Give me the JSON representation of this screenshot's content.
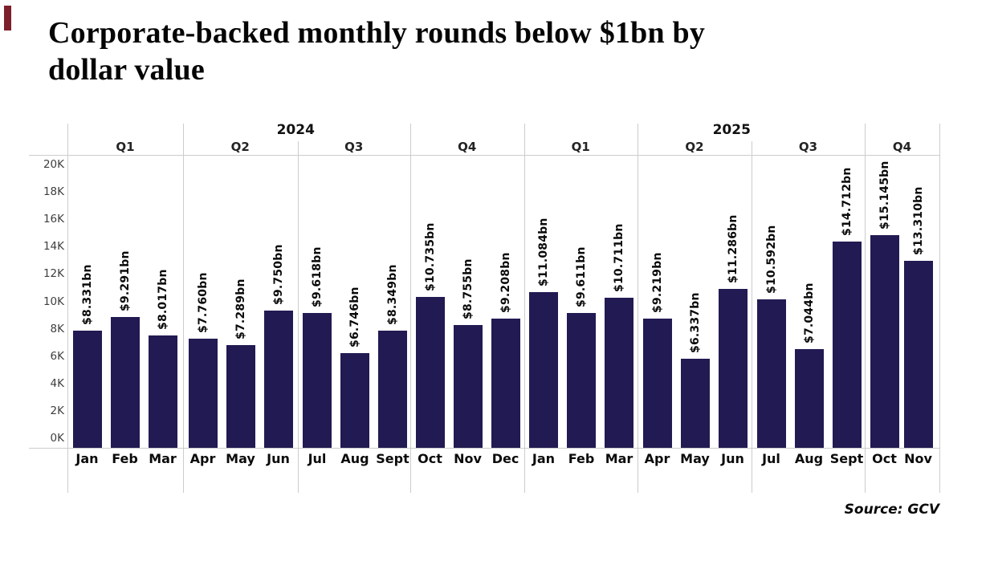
{
  "title": {
    "line1": "Corporate-backed monthly rounds below $1bn by",
    "line2": "dollar value"
  },
  "source_label": "Source: GCV",
  "colors": {
    "bar": "#221a52",
    "brand_mark": "#7d1f2b",
    "grid_line": "#cccccc"
  },
  "chart_data": {
    "type": "bar",
    "title": "Corporate-backed monthly rounds below $1bn by dollar value",
    "xlabel": "",
    "ylabel": "",
    "ylim": [
      0,
      20000
    ],
    "y_ticks": [
      "0K",
      "2K",
      "4K",
      "6K",
      "8K",
      "10K",
      "12K",
      "14K",
      "16K",
      "18K",
      "20K"
    ],
    "legend": "none",
    "gridlines": "quarter and year separator lines only, no horizontal gridlines",
    "bar_color": "#221a52",
    "source": "Source: GCV",
    "years": [
      {
        "year": "2024",
        "quarters": [
          {
            "label": "Q1",
            "months": [
              {
                "month": "Jan",
                "value": 8331,
                "bar_label": "$8.331bn"
              },
              {
                "month": "Feb",
                "value": 9291,
                "bar_label": "$9.291bn"
              },
              {
                "month": "Mar",
                "value": 8017,
                "bar_label": "$8.017bn"
              }
            ]
          },
          {
            "label": "Q2",
            "months": [
              {
                "month": "Apr",
                "value": 7760,
                "bar_label": "$7.760bn"
              },
              {
                "month": "May",
                "value": 7289,
                "bar_label": "$7.289bn"
              },
              {
                "month": "Jun",
                "value": 9750,
                "bar_label": "$9.750bn"
              }
            ]
          },
          {
            "label": "Q3",
            "months": [
              {
                "month": "Jul",
                "value": 9618,
                "bar_label": "$9.618bn"
              },
              {
                "month": "Aug",
                "value": 6746,
                "bar_label": "$6.746bn"
              },
              {
                "month": "Sept",
                "value": 8349,
                "bar_label": "$8.349bn"
              }
            ]
          },
          {
            "label": "Q4",
            "months": [
              {
                "month": "Oct",
                "value": 10735,
                "bar_label": "$10.735bn"
              },
              {
                "month": "Nov",
                "value": 8755,
                "bar_label": "$8.755bn"
              },
              {
                "month": "Dec",
                "value": 9208,
                "bar_label": "$9.208bn"
              }
            ]
          }
        ]
      },
      {
        "year": "2025",
        "quarters": [
          {
            "label": "Q1",
            "months": [
              {
                "month": "Jan",
                "value": 11084,
                "bar_label": "$11.084bn"
              },
              {
                "month": "Feb",
                "value": 9611,
                "bar_label": "$9.611bn"
              },
              {
                "month": "Mar",
                "value": 10711,
                "bar_label": "$10.711bn"
              }
            ]
          },
          {
            "label": "Q2",
            "months": [
              {
                "month": "Apr",
                "value": 9219,
                "bar_label": "$9.219bn"
              },
              {
                "month": "May",
                "value": 6337,
                "bar_label": "$6.337bn"
              },
              {
                "month": "Jun",
                "value": 11286,
                "bar_label": "$11.286bn"
              }
            ]
          },
          {
            "label": "Q3",
            "months": [
              {
                "month": "Jul",
                "value": 10592,
                "bar_label": "$10.592bn"
              },
              {
                "month": "Aug",
                "value": 7044,
                "bar_label": "$7.044bn"
              },
              {
                "month": "Sept",
                "value": 14712,
                "bar_label": "$14.712bn"
              }
            ]
          },
          {
            "label": "Q4",
            "months": [
              {
                "month": "Oct",
                "value": 15145,
                "bar_label": "$15.145bn"
              },
              {
                "month": "Nov",
                "value": 13310,
                "bar_label": "$13.310bn"
              }
            ]
          }
        ]
      }
    ]
  }
}
